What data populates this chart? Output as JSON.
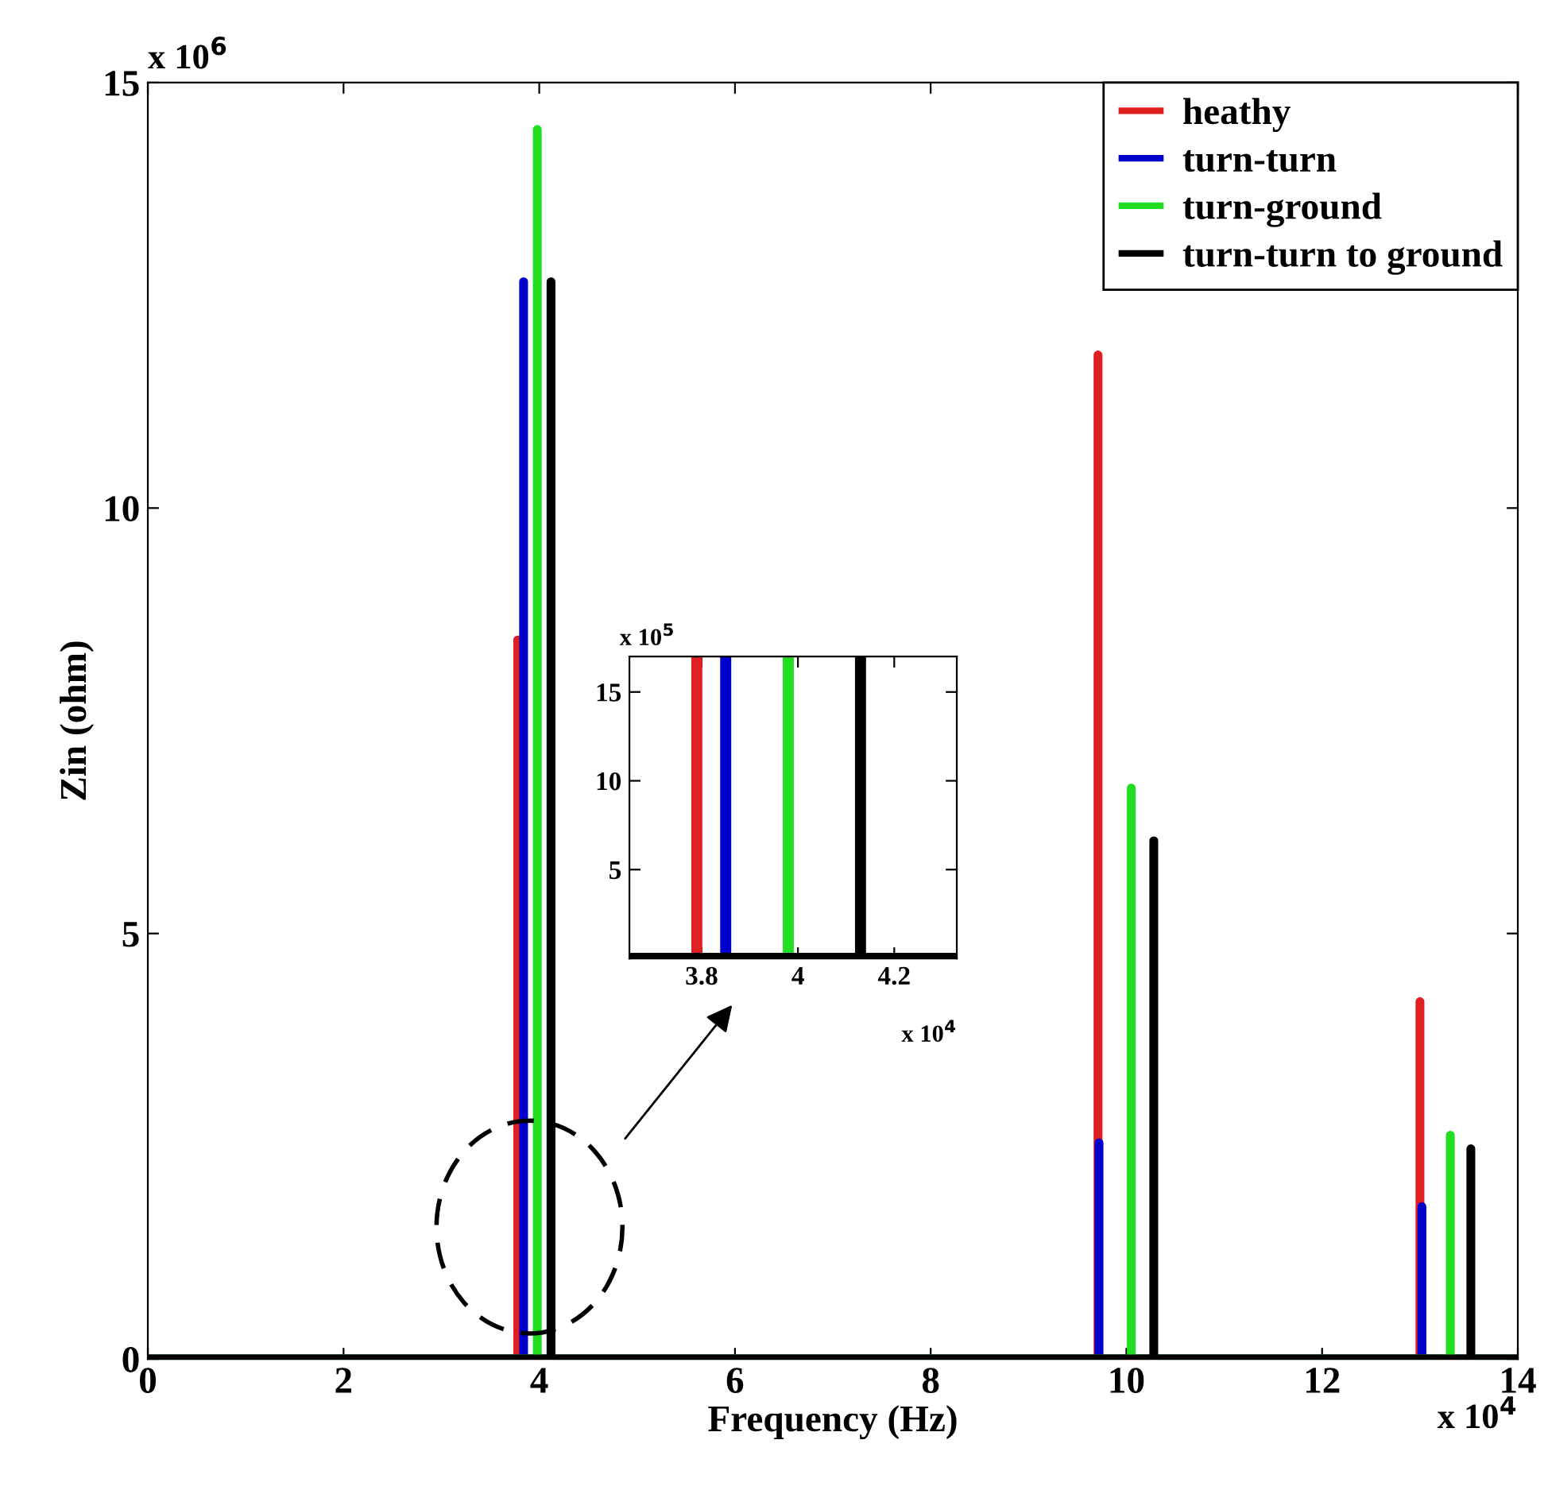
{
  "chart_data": [
    {
      "type": "line",
      "xlabel": "Frequency (Hz)",
      "ylabel": "Zin (ohm)",
      "xlim": [
        0,
        14
      ],
      "ylim": [
        0,
        15
      ],
      "xticks": [
        0,
        2,
        4,
        6,
        8,
        10,
        12,
        14
      ],
      "yticks": [
        0,
        5,
        10,
        15
      ],
      "grid": false,
      "legend": "top right",
      "marker": "none",
      "line_style": "solid",
      "annotations": [
        "x 10$^{6}$",
        "x 10$^{4}$"
      ],
      "series": [
        {
          "name": "heathy",
          "color": "#e02020",
          "x": [
            0,
            3.78,
            3.78,
            3.78,
            9.71,
            9.71,
            9.71,
            13.0,
            13.0,
            13.0,
            14
          ],
          "values": [
            0,
            0,
            8.45,
            0,
            0,
            11.8,
            0,
            0,
            4.2,
            0,
            0
          ]
        },
        {
          "name": "turn-turn",
          "color": "#0000cc",
          "x": [
            0,
            3.84,
            3.84,
            3.84,
            9.72,
            9.72,
            9.72,
            13.02,
            13.02,
            13.02,
            14
          ],
          "values": [
            0,
            0,
            12.66,
            0,
            0,
            2.54,
            0,
            0,
            1.79,
            0,
            0
          ]
        },
        {
          "name": "turn-ground",
          "color": "#22dd22",
          "x": [
            0,
            3.98,
            3.98,
            3.98,
            10.05,
            10.05,
            10.05,
            13.31,
            13.31,
            13.31,
            14
          ],
          "values": [
            0,
            0,
            14.45,
            0,
            0,
            6.71,
            0,
            0,
            2.63,
            0,
            0
          ]
        },
        {
          "name": "turn-turn to ground",
          "color": "#000000",
          "x": [
            0,
            4.12,
            4.12,
            4.12,
            10.28,
            10.28,
            10.28,
            13.52,
            13.52,
            13.52,
            14
          ],
          "values": [
            0,
            0,
            12.66,
            0,
            0,
            6.09,
            0,
            0,
            2.47,
            0,
            0
          ]
        }
      ]
    },
    {
      "type": "line",
      "xlim": [
        3.65,
        4.33
      ],
      "ylim": [
        0,
        17
      ],
      "xticks": [
        3.8,
        4,
        4.2
      ],
      "yticks": [
        5,
        10,
        15
      ],
      "grid": false,
      "marker": "none",
      "line_style": "solid",
      "annotations": [
        "x 10$^{5}$",
        "x 10$^{4}$"
      ],
      "series": [
        {
          "color": "#e02020",
          "x": [
            3.65,
            3.79,
            3.79,
            3.79,
            4.33
          ],
          "values": [
            0,
            0,
            17,
            0,
            0
          ]
        },
        {
          "color": "#0000cc",
          "x": [
            3.65,
            3.85,
            3.85,
            3.85,
            4.33
          ],
          "values": [
            0,
            0,
            17,
            0,
            0
          ]
        },
        {
          "color": "#22dd22",
          "x": [
            3.65,
            3.98,
            3.98,
            3.98,
            4.33
          ],
          "values": [
            0,
            0,
            17,
            0,
            0
          ]
        },
        {
          "color": "#000000",
          "x": [
            3.65,
            4.13,
            4.13,
            4.13,
            4.33
          ],
          "values": [
            0,
            0,
            17,
            0,
            0
          ]
        }
      ]
    }
  ]
}
